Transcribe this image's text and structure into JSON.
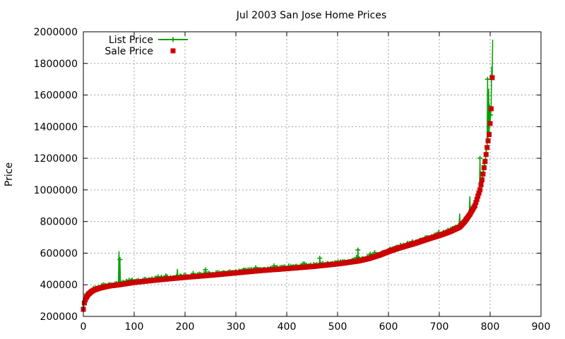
{
  "chart_data": {
    "type": "line",
    "title": "Jul 2003 San Jose Home Prices",
    "xlabel": "",
    "ylabel": "Price",
    "xlim": [
      0,
      900
    ],
    "ylim": [
      200000,
      2000000
    ],
    "xticks": [
      0,
      100,
      200,
      300,
      400,
      500,
      600,
      700,
      800,
      900
    ],
    "yticks": [
      200000,
      400000,
      600000,
      800000,
      1000000,
      1200000,
      1400000,
      1600000,
      1800000,
      2000000
    ],
    "grid": true,
    "legend_position": "top-left",
    "n_points": 806,
    "sale_price_profile": {
      "x": [
        0,
        2,
        5,
        10,
        15,
        20,
        30,
        40,
        50,
        70,
        100,
        150,
        200,
        250,
        300,
        350,
        400,
        450,
        500,
        540,
        560,
        580,
        600,
        620,
        650,
        680,
        700,
        720,
        740,
        750,
        760,
        770,
        775,
        780,
        785,
        790,
        795,
        798,
        800,
        803,
        805
      ],
      "y": [
        245000,
        285000,
        315000,
        340000,
        355000,
        365000,
        377000,
        385000,
        392000,
        400000,
        415000,
        432000,
        447000,
        460000,
        475000,
        490000,
        502000,
        515000,
        532000,
        550000,
        565000,
        585000,
        610000,
        632000,
        660000,
        692000,
        712000,
        735000,
        765000,
        800000,
        845000,
        900000,
        950000,
        1000000,
        1080000,
        1180000,
        1290000,
        1350000,
        1420000,
        1560000,
        1860000
      ]
    },
    "list_price_deviations": [
      {
        "x": 70,
        "y": 612000
      },
      {
        "x": 72,
        "y": 560000
      },
      {
        "x": 185,
        "y": 500000
      },
      {
        "x": 240,
        "y": 495000
      },
      {
        "x": 465,
        "y": 568000
      },
      {
        "x": 540,
        "y": 620000
      },
      {
        "x": 740,
        "y": 850000
      },
      {
        "x": 760,
        "y": 960000
      },
      {
        "x": 780,
        "y": 1200000
      },
      {
        "x": 795,
        "y": 1700000
      },
      {
        "x": 797,
        "y": 1640000
      },
      {
        "x": 799,
        "y": 1540000
      },
      {
        "x": 803,
        "y": 1780000
      },
      {
        "x": 805,
        "y": 1950000
      }
    ],
    "series": [
      {
        "name": "List Price",
        "style": "lines+crosses",
        "color": "#00a000"
      },
      {
        "name": "Sale Price",
        "style": "squares",
        "color": "#cc0000"
      }
    ]
  }
}
